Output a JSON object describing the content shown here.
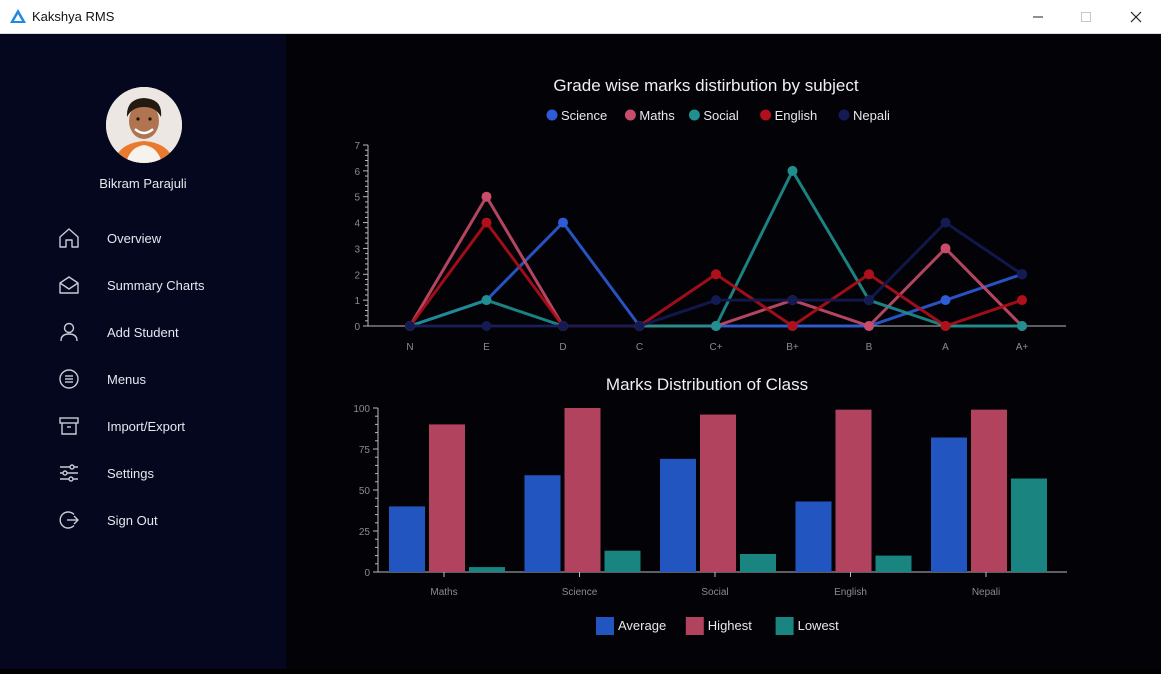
{
  "app": {
    "title": "Kakshya RMS"
  },
  "user": {
    "name": "Bikram Parajuli"
  },
  "nav": [
    {
      "label": "Overview",
      "icon": "home-icon"
    },
    {
      "label": "Summary Charts",
      "icon": "envelope-icon"
    },
    {
      "label": "Add Student",
      "icon": "user-icon"
    },
    {
      "label": "Menus",
      "icon": "menu-circle-icon"
    },
    {
      "label": "Import/Export",
      "icon": "archive-icon"
    },
    {
      "label": "Settings",
      "icon": "sliders-icon"
    },
    {
      "label": "Sign Out",
      "icon": "sign-out-icon"
    }
  ],
  "chart_data": [
    {
      "type": "line",
      "title": "Grade wise marks distirbution by subject",
      "categories": [
        "N",
        "E",
        "D",
        "C",
        "C+",
        "B+",
        "B",
        "A",
        "A+"
      ],
      "ylim": [
        0,
        7
      ],
      "yticks": [
        0,
        1,
        2,
        3,
        4,
        5,
        6,
        7
      ],
      "legend_position": "top-center",
      "series": [
        {
          "name": "Science",
          "color": "#2e5bd6",
          "values": [
            0,
            1,
            4,
            0,
            0,
            0,
            0,
            1,
            2
          ]
        },
        {
          "name": "Maths",
          "color": "#c84d6b",
          "values": [
            0,
            5,
            0,
            0,
            0,
            1,
            0,
            3,
            0
          ]
        },
        {
          "name": "Social",
          "color": "#1f8f8f",
          "values": [
            0,
            1,
            0,
            0,
            0,
            6,
            1,
            0,
            0
          ]
        },
        {
          "name": "English",
          "color": "#b0101b",
          "values": [
            0,
            4,
            0,
            0,
            2,
            0,
            2,
            0,
            1
          ]
        },
        {
          "name": "Nepali",
          "color": "#141a52",
          "values": [
            0,
            0,
            0,
            0,
            1,
            1,
            1,
            4,
            2
          ]
        }
      ]
    },
    {
      "type": "bar",
      "title": "Marks Distribution of Class",
      "categories": [
        "Maths",
        "Science",
        "Social",
        "English",
        "Nepali"
      ],
      "ylim": [
        0,
        100
      ],
      "yticks": [
        0,
        25,
        50,
        75,
        100
      ],
      "legend_position": "bottom-center",
      "series": [
        {
          "name": "Average",
          "color": "#2255c0",
          "values": [
            40,
            59,
            69,
            43,
            82
          ]
        },
        {
          "name": "Highest",
          "color": "#b1435e",
          "values": [
            90,
            100,
            96,
            99,
            99
          ]
        },
        {
          "name": "Lowest",
          "color": "#1a8580",
          "values": [
            3,
            13,
            11,
            10,
            57
          ]
        }
      ]
    }
  ]
}
